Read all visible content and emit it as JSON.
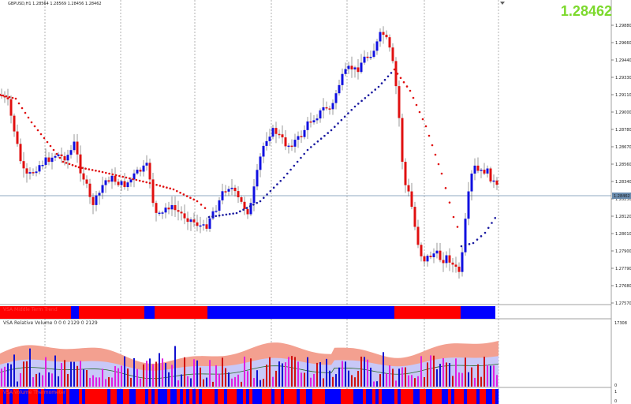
{
  "window": {
    "symbol_line": "GBPUSD,H1  1.28564 1.28569 1.28456 1.28462",
    "big_price": "1.28462"
  },
  "price_axis": {
    "ticks": [
      "1.29880",
      "1.29660",
      "1.29440",
      "1.29330",
      "1.29110",
      "1.29000",
      "1.28780",
      "1.28670",
      "1.28560",
      "1.28340",
      "1.28230",
      "1.28120",
      "1.28010",
      "1.27900",
      "1.27790",
      "1.27680",
      "1.27570"
    ],
    "current_label": "1.28462"
  },
  "panels": {
    "trend": {
      "label": "VSA Middle Term Trend"
    },
    "volume": {
      "label": "VSA Relative Volume 0 0 0 2129 0 2129",
      "axis_top": "17308",
      "axis_bottom": "0"
    },
    "volume_thermometer": {
      "label": "VSA Volume Thermometer",
      "axis_top": "1",
      "axis_bottom": "0"
    }
  },
  "colors": {
    "bull": "#1010e0",
    "bear": "#e01010",
    "dots": "#e01010",
    "dots_blue": "#1a1aa0",
    "grid": "#808080",
    "band_outer": "#f3a090",
    "band_inner": "#c8c8f8",
    "vol_blue": "#1010d0",
    "vol_red": "#d01010",
    "vol_magenta": "#e020e0"
  },
  "trend_segments": [
    {
      "from": 0,
      "to": 90,
      "color": "red"
    },
    {
      "from": 90,
      "to": 100,
      "color": "blue"
    },
    {
      "from": 100,
      "to": 183,
      "color": "red"
    },
    {
      "from": 183,
      "to": 196,
      "color": "blue"
    },
    {
      "from": 196,
      "to": 263,
      "color": "red"
    },
    {
      "from": 263,
      "to": 500,
      "color": "blue"
    },
    {
      "from": 500,
      "to": 584,
      "color": "red"
    },
    {
      "from": 584,
      "to": 628,
      "color": "blue"
    }
  ]
}
